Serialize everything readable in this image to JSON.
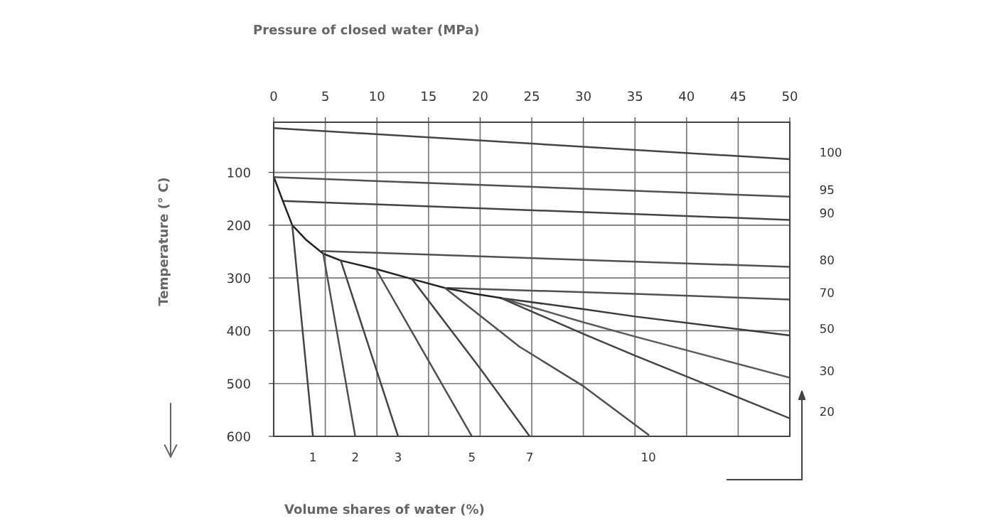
{
  "chart_data": {
    "type": "line",
    "xlabel": "Pressure of closed water (MPa)",
    "ylabel": "Temperature (° C)",
    "annotations": [
      "Volume shares of water (%)"
    ],
    "xlim": [
      0,
      50
    ],
    "xticks": [
      0,
      5,
      10,
      15,
      20,
      25,
      30,
      35,
      40,
      45,
      50
    ],
    "ylim": [
      600,
      5
    ],
    "yticks": [
      100,
      200,
      300,
      400,
      500,
      600
    ],
    "grid": true,
    "marker": "none",
    "line_style": "solid",
    "series": [
      {
        "name": "100",
        "color": "#444444",
        "x": [
          0,
          50
        ],
        "values": [
          16,
          75
        ]
      },
      {
        "name": "95",
        "color": "#505050",
        "x": [
          0,
          50
        ],
        "values": [
          109,
          146
        ]
      },
      {
        "name": "90",
        "color": "#444444",
        "x": [
          0.9,
          50
        ],
        "values": [
          154,
          190
        ]
      },
      {
        "name": "80",
        "color": "#505050",
        "x": [
          4.7,
          50
        ],
        "values": [
          249,
          279
        ]
      },
      {
        "name": "70",
        "color": "#505050",
        "x": [
          16.9,
          35,
          50
        ],
        "values": [
          319,
          330,
          341
        ]
      },
      {
        "name": "50",
        "color": "#3a3a3a",
        "x": [
          22,
          30,
          35,
          50
        ],
        "values": [
          338,
          359,
          373,
          409
        ]
      },
      {
        "name": "30",
        "color": "#5a5a5a",
        "x": [
          22,
          30,
          35,
          50
        ],
        "values": [
          338,
          384,
          411,
          489
        ]
      },
      {
        "name": "20",
        "color": "#444444",
        "x": [
          22,
          30,
          35,
          50
        ],
        "values": [
          338,
          406,
          447,
          566
        ]
      },
      {
        "color": "#222222",
        "x": [
          0,
          0.9,
          1.8,
          3.1,
          4.8,
          6.5,
          9.9,
          13.4,
          16.6,
          19.5,
          22
        ],
        "values": [
          108,
          155,
          200,
          227,
          254,
          267,
          283,
          302,
          319,
          330,
          338
        ]
      },
      {
        "name": "1",
        "color": "#444444",
        "x": [
          1.8,
          3.8
        ],
        "values": [
          200,
          600
        ]
      },
      {
        "name": "2",
        "color": "#505050",
        "x": [
          4.8,
          7.9
        ],
        "values": [
          254,
          600
        ]
      },
      {
        "name": "3",
        "color": "#444444",
        "x": [
          6.5,
          12.05
        ],
        "values": [
          267,
          600
        ]
      },
      {
        "name": "5",
        "color": "#505050",
        "x": [
          9.9,
          19.2
        ],
        "values": [
          283,
          600
        ]
      },
      {
        "name": "7",
        "color": "#444444",
        "x": [
          13.4,
          20.1,
          24.8
        ],
        "values": [
          302,
          474,
          600
        ]
      },
      {
        "name": "10",
        "color": "#505050",
        "x": [
          16.6,
          23.8,
          30,
          36.3
        ],
        "values": [
          319,
          430,
          505,
          597
        ]
      }
    ]
  }
}
